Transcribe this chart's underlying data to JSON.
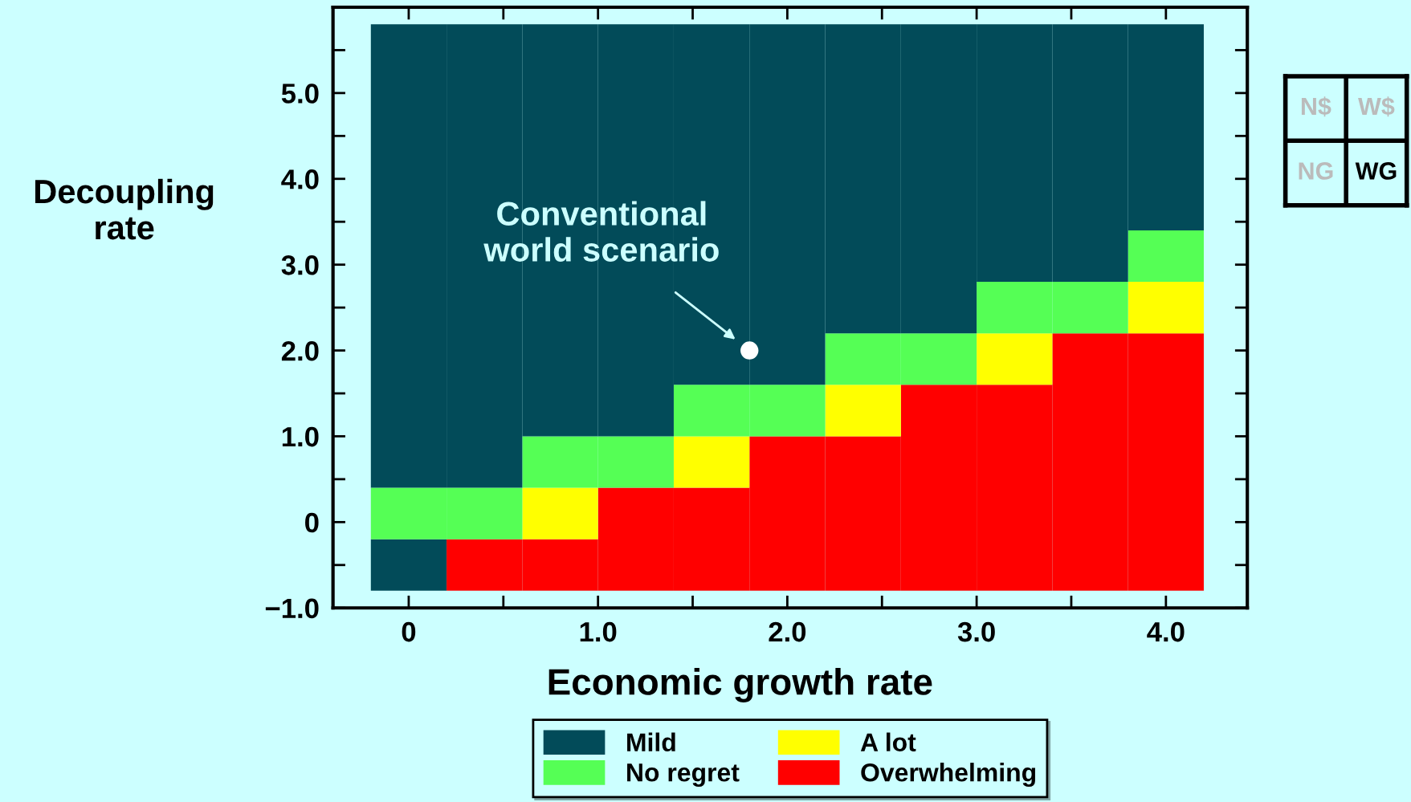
{
  "chart_data": [
    {
      "type": "bar",
      "xlabel": "Economic growth rate",
      "ylabel": "Decoupling\nrate",
      "x": [
        0,
        0.4,
        0.8,
        1.2,
        1.6,
        2.0,
        2.4,
        2.8,
        3.2,
        3.6,
        4.0
      ],
      "series": [
        {
          "color": "#024b59",
          "base": [
            -0.8,
            null,
            null,
            null,
            null,
            null,
            null,
            null,
            null,
            null,
            null
          ],
          "values": [
            0.6,
            null,
            null,
            null,
            null,
            null,
            null,
            null,
            null,
            null,
            null
          ]
        },
        {
          "name": "Overwhelming",
          "color": "#ff0000",
          "base": [
            null,
            -0.8,
            -0.8,
            -0.8,
            -0.8,
            -0.8,
            -0.8,
            -0.8,
            -0.8,
            -0.8,
            -0.8
          ],
          "values": [
            null,
            0.6,
            0.6,
            1.2,
            1.2,
            1.8,
            1.8,
            2.4,
            2.4,
            3.0,
            3.0
          ]
        },
        {
          "name": "A lot",
          "color": "#ffff00",
          "base": [
            null,
            null,
            -0.2,
            null,
            0.4,
            null,
            1.0,
            null,
            1.6,
            null,
            2.2
          ],
          "values": [
            null,
            null,
            0.6,
            null,
            0.6,
            null,
            0.6,
            null,
            0.6,
            null,
            0.6
          ]
        },
        {
          "name": "No regret",
          "color": "#55ff55",
          "base": [
            -0.2,
            -0.2,
            0.4,
            0.4,
            1.0,
            1.0,
            1.6,
            1.6,
            2.2,
            2.2,
            2.8
          ],
          "values": [
            0.6,
            0.6,
            0.6,
            0.6,
            0.6,
            0.6,
            0.6,
            0.6,
            0.6,
            0.6,
            0.6
          ]
        },
        {
          "name": "Mild",
          "color": "#024b59",
          "base": [
            0.4,
            0.4,
            1.0,
            1.0,
            1.6,
            1.6,
            2.2,
            2.2,
            2.8,
            2.8,
            3.4
          ],
          "values": [
            5.4,
            5.4,
            4.8,
            4.8,
            4.2,
            4.2,
            3.6,
            3.6,
            3.0,
            3.0,
            2.4
          ]
        },
        {
          "type": "scatter",
          "color": "#ffffff",
          "x": [
            1.8
          ],
          "values": [
            2.0
          ],
          "marker": "circle"
        }
      ],
      "annotations": [
        {
          "text": "Conventional\nworld scenario",
          "x": 1.8,
          "y": 2.0
        }
      ],
      "xlim": [
        -0.4,
        4.43
      ],
      "ylim": [
        -1,
        6
      ],
      "xticks": [
        0,
        {
          "value": 1,
          "label": "1.0"
        },
        {
          "value": 2,
          "label": "2.0"
        },
        {
          "value": 3,
          "label": "3.0"
        },
        {
          "value": 4,
          "label": "4.0"
        }
      ],
      "yticks": [
        {
          "value": -1,
          "label": "−1.0"
        },
        0,
        {
          "value": 1,
          "label": "1.0"
        },
        {
          "value": 2,
          "label": "2.0"
        },
        {
          "value": 3,
          "label": "3.0"
        },
        {
          "value": 4,
          "label": "4.0"
        },
        {
          "value": 5,
          "label": "5.0"
        }
      ],
      "grid": false,
      "legend": "bottom"
    },
    {
      "type": "other",
      "annotations": [
        "N$",
        "W$",
        "NG",
        "WG"
      ]
    }
  ]
}
